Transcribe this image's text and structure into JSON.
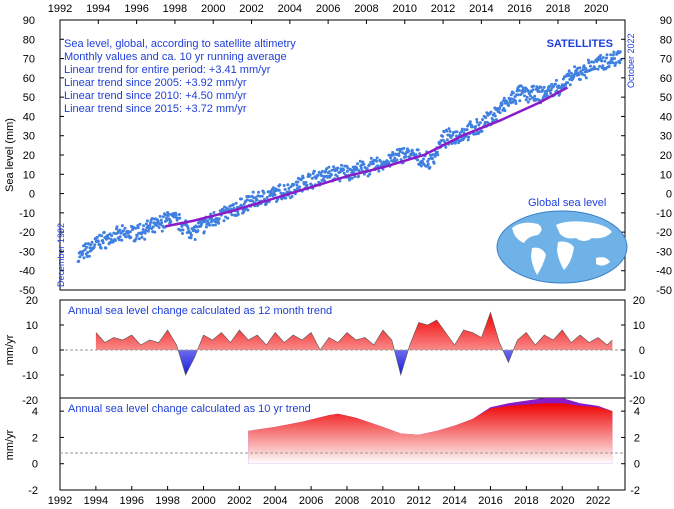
{
  "chart_data": [
    {
      "type": "scatter",
      "name": "main-panel",
      "ylabel": "Sea level (mm)",
      "ylim": [
        -50,
        90
      ],
      "yticks": [
        90,
        80,
        70,
        60,
        50,
        40,
        30,
        20,
        10,
        0,
        -10,
        -20,
        -30,
        -40,
        -50
      ],
      "xlim": [
        1992,
        2021.5
      ],
      "xticks_top": [
        "1992",
        "1994",
        "1996",
        "1998",
        "2000",
        "2002",
        "2004",
        "2006",
        "2008",
        "2010",
        "2012",
        "2014",
        "2016",
        "2018",
        "2020"
      ],
      "annotations": {
        "title_lines": [
          "Sea level, global, according to satellite altimetry",
          "Monthly values and ca. 10 yr running average",
          "Linear trend for entire period: +3.41 mm/yr",
          "Linear trend since 2005: +3.92 mm/yr",
          "Linear trend since 2010: +4.50 mm/yr",
          "Linear trend since 2015: +3.72 mm/yr"
        ],
        "badge": "SATELLITES",
        "start_label": "December 1992",
        "end_label": "October 2022",
        "map_label": "Global sea level"
      },
      "colors": {
        "points": "#3f7fe0",
        "running_average": "#8a1cc8",
        "text": "#1f3fd8"
      },
      "monthly_anchor_values": {
        "x": [
          1992.95,
          1993.5,
          1994,
          1995,
          1996,
          1997,
          1997.8,
          1998.5,
          1999,
          2000,
          2001,
          2002,
          2003,
          2004,
          2005,
          2006,
          2007,
          2008,
          2009,
          2010,
          2010.8,
          2011.3,
          2012,
          2013,
          2014,
          2015,
          2016,
          2017,
          2018,
          2019,
          2020,
          2021,
          2021.3
        ],
        "y": [
          -33,
          -29,
          -25,
          -22,
          -20,
          -17,
          -12,
          -17,
          -20,
          -13,
          -9,
          -4,
          -1,
          2,
          7,
          10,
          11,
          13,
          16,
          21,
          18,
          16,
          28,
          31,
          35,
          44,
          52,
          51,
          55,
          62,
          67,
          70,
          73
        ]
      },
      "running_average": {
        "x": [
          1997.5,
          1999,
          2001,
          2003,
          2005,
          2007,
          2009,
          2011,
          2013,
          2015,
          2017,
          2018.5
        ],
        "y": [
          -17,
          -14,
          -9,
          -3,
          3,
          9,
          14,
          20,
          30,
          38,
          47,
          55
        ]
      }
    },
    {
      "type": "area",
      "name": "annual-12mo-trend",
      "title": "Annual sea level change calculated as 12 month trend",
      "ylabel": "mm/yr",
      "ylim": [
        -20,
        20
      ],
      "yticks": [
        20,
        10,
        0,
        -10,
        -20
      ],
      "x": [
        1994.0,
        1994.5,
        1995,
        1995.5,
        1996,
        1996.5,
        1997,
        1997.5,
        1998.0,
        1998.5,
        1999.0,
        1999.5,
        2000,
        2000.5,
        2001,
        2001.5,
        2002,
        2002.5,
        2003,
        2003.5,
        2004,
        2004.5,
        2005,
        2005.5,
        2006,
        2006.5,
        2007,
        2007.5,
        2008,
        2008.5,
        2009,
        2009.5,
        2010,
        2010.5,
        2011.0,
        2011.5,
        2012,
        2012.5,
        2013,
        2013.5,
        2014,
        2014.5,
        2015,
        2015.5,
        2016.0,
        2016.5,
        2017.0,
        2017.5,
        2018,
        2018.5,
        2019,
        2019.5,
        2020,
        2020.5,
        2021,
        2021.5,
        2022,
        2022.5,
        2022.8
      ],
      "values": [
        7,
        3,
        5,
        4,
        6,
        2,
        4,
        3,
        8,
        2,
        -10,
        -3,
        6,
        4,
        7,
        3,
        8,
        4,
        6,
        2,
        7,
        3,
        6,
        4,
        7,
        0,
        5,
        3,
        7,
        4,
        5,
        2,
        8,
        4,
        -10,
        2,
        11,
        10,
        12,
        7,
        2,
        8,
        7,
        5,
        15,
        3,
        -5,
        4,
        7,
        2,
        6,
        4,
        8,
        3,
        6,
        3,
        5,
        2,
        4
      ]
    },
    {
      "type": "area",
      "name": "annual-10yr-trend",
      "title": "Annual sea level change calculated as 10 yr trend",
      "ylabel": "mm/yr",
      "ylim": [
        -2,
        5
      ],
      "yticks": [
        4,
        2,
        0,
        -2
      ],
      "x": [
        2002.5,
        2004,
        2005.5,
        2007,
        2007.5,
        2008.5,
        2010,
        2011,
        2012,
        2013,
        2014,
        2015,
        2016,
        2017,
        2018,
        2019,
        2020,
        2021,
        2022,
        2022.8
      ],
      "values": [
        2.5,
        2.8,
        3.2,
        3.7,
        3.8,
        3.5,
        2.8,
        2.3,
        2.2,
        2.5,
        2.9,
        3.4,
        4.2,
        4.4,
        4.5,
        4.6,
        4.6,
        4.4,
        4.3,
        4.0
      ],
      "overlay_values": [
        2.5,
        2.8,
        3.2,
        3.7,
        3.8,
        3.5,
        2.8,
        2.3,
        2.2,
        2.5,
        2.9,
        3.4,
        4.3,
        4.6,
        4.8,
        5.0,
        5.0,
        4.6,
        4.4,
        4.0
      ],
      "xticks_bottom": [
        "1992",
        "1994",
        "1996",
        "1998",
        "2000",
        "2002",
        "2004",
        "2006",
        "2008",
        "2010",
        "2012",
        "2014",
        "2016",
        "2018",
        "2020",
        "2022"
      ],
      "xlim": [
        1992,
        2023.5
      ]
    }
  ]
}
